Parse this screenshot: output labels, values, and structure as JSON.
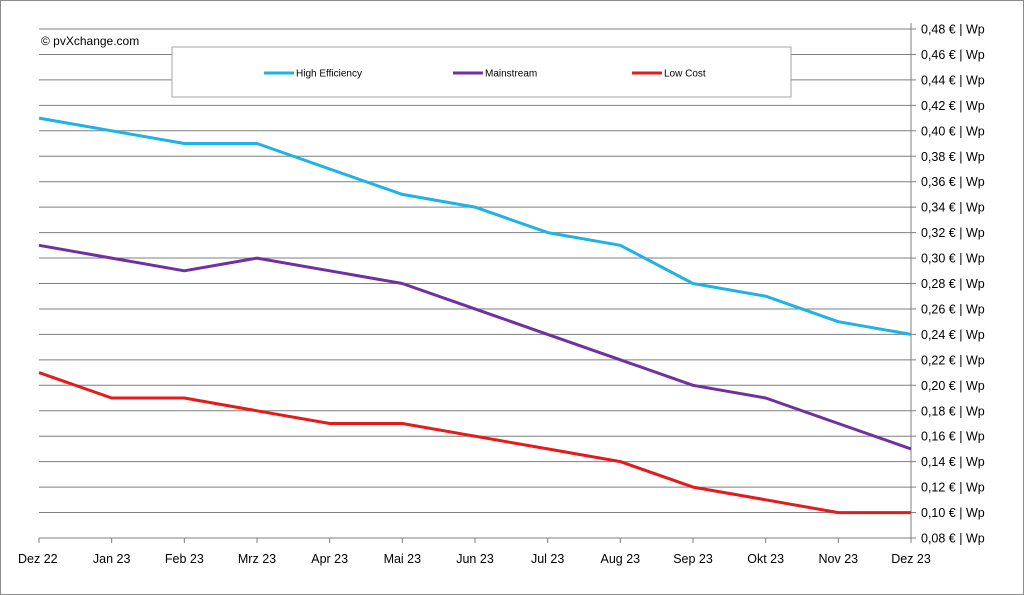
{
  "copyright": "© pvXchange.com",
  "chart_data": {
    "type": "line",
    "categories": [
      "Dez 22",
      "Jan 23",
      "Feb 23",
      "Mrz 23",
      "Apr 23",
      "Mai 23",
      "Jun 23",
      "Jul 23",
      "Aug 23",
      "Sep 23",
      "Okt 23",
      "Nov 23",
      "Dez 23"
    ],
    "series": [
      {
        "name": "High Efficiency",
        "color": "#1fb2e6",
        "values": [
          0.41,
          0.4,
          0.39,
          0.39,
          0.37,
          0.35,
          0.34,
          0.32,
          0.31,
          0.28,
          0.27,
          0.25,
          0.24
        ]
      },
      {
        "name": "Mainstream",
        "color": "#7030a0",
        "values": [
          0.31,
          0.3,
          0.29,
          0.3,
          0.29,
          0.28,
          0.26,
          0.24,
          0.22,
          0.2,
          0.19,
          0.17,
          0.15
        ]
      },
      {
        "name": "Low Cost",
        "color": "#e31b1b",
        "values": [
          0.21,
          0.19,
          0.19,
          0.18,
          0.17,
          0.17,
          0.16,
          0.15,
          0.14,
          0.12,
          0.11,
          0.1,
          0.1
        ]
      }
    ],
    "y_ticks": [
      "0,08 € | Wp",
      "0,10 € | Wp",
      "0,12 € | Wp",
      "0,14 € | Wp",
      "0,16 € | Wp",
      "0,18 € | Wp",
      "0,20 € | Wp",
      "0,22 € | Wp",
      "0,24 € | Wp",
      "0,26 € | Wp",
      "0,28 € | Wp",
      "0,30 € | Wp",
      "0,32 € | Wp",
      "0,34 € | Wp",
      "0,36 € | Wp",
      "0,38 € | Wp",
      "0,40 € | Wp",
      "0,42 € | Wp",
      "0,44 € | Wp",
      "0,46 € | Wp",
      "0,48 € | Wp"
    ],
    "ylim": [
      0.08,
      0.48
    ],
    "y_step": 0.02,
    "grid": true,
    "legend": "top"
  }
}
